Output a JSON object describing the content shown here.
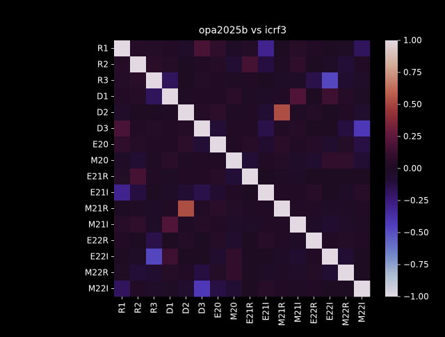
{
  "chart_data": {
    "type": "heatmap",
    "title": "opa2025b vs icrf3",
    "labels": [
      "R1",
      "R2",
      "R3",
      "D1",
      "D2",
      "D3",
      "E20",
      "M20",
      "E21R",
      "E21I",
      "M21R",
      "M21I",
      "E22R",
      "E22I",
      "M22R",
      "M22I"
    ],
    "colormap": "twilight_shifted",
    "vmin": -1.0,
    "vmax": 1.0,
    "colorbar_ticks": [
      "1.00",
      "0.75",
      "0.50",
      "0.25",
      "0.00",
      "−0.25",
      "−0.50",
      "−0.75",
      "−1.00"
    ],
    "colorbar_tick_values": [
      1.0,
      0.75,
      0.5,
      0.25,
      0.0,
      -0.25,
      -0.5,
      -0.75,
      -1.0
    ],
    "matrix": [
      [
        1.0,
        0.04,
        0.03,
        0.02,
        -0.03,
        0.18,
        0.08,
        -0.02,
        0.03,
        -0.3,
        0.0,
        0.05,
        0.02,
        0.0,
        -0.01,
        -0.18
      ],
      [
        0.04,
        1.0,
        0.06,
        0.04,
        0.0,
        0.02,
        0.04,
        -0.08,
        0.17,
        -0.12,
        0.01,
        0.08,
        0.0,
        -0.02,
        -0.1,
        0.02
      ],
      [
        0.03,
        0.06,
        1.0,
        -0.18,
        0.0,
        0.03,
        0.02,
        0.01,
        0.02,
        0.0,
        -0.02,
        -0.02,
        -0.14,
        -0.47,
        -0.06,
        -0.03
      ],
      [
        0.02,
        0.04,
        -0.18,
        1.0,
        0.01,
        0.02,
        0.02,
        0.06,
        -0.01,
        -0.02,
        0.02,
        0.2,
        0.0,
        0.14,
        0.04,
        -0.01
      ],
      [
        -0.03,
        0.0,
        0.0,
        0.01,
        1.0,
        0.04,
        0.07,
        0.01,
        0.02,
        -0.08,
        0.53,
        0.01,
        0.03,
        0.0,
        0.02,
        -0.05
      ],
      [
        0.18,
        0.02,
        0.03,
        0.02,
        0.04,
        1.0,
        -0.09,
        0.02,
        0.02,
        -0.14,
        0.02,
        0.04,
        0.0,
        0.0,
        -0.12,
        -0.42
      ],
      [
        0.08,
        0.04,
        0.02,
        0.02,
        0.07,
        -0.09,
        1.0,
        0.02,
        0.05,
        -0.07,
        0.06,
        0.02,
        0.04,
        -0.05,
        0.03,
        -0.13
      ],
      [
        -0.02,
        -0.08,
        0.01,
        0.06,
        0.01,
        0.02,
        0.02,
        1.0,
        -0.1,
        0.02,
        0.03,
        -0.03,
        -0.05,
        0.1,
        0.1,
        -0.08
      ],
      [
        0.03,
        0.17,
        0.02,
        -0.01,
        0.02,
        0.02,
        0.05,
        -0.1,
        1.0,
        0.0,
        0.01,
        -0.02,
        0.0,
        0.0,
        0.0,
        0.0
      ],
      [
        -0.3,
        -0.12,
        0.0,
        -0.02,
        -0.08,
        -0.14,
        -0.07,
        0.02,
        0.0,
        1.0,
        0.02,
        0.02,
        0.05,
        0.0,
        -0.02,
        0.05
      ],
      [
        0.0,
        0.01,
        -0.02,
        0.02,
        0.53,
        0.02,
        0.06,
        0.03,
        0.01,
        0.02,
        1.0,
        0.02,
        0.02,
        -0.02,
        0.01,
        0.02
      ],
      [
        0.05,
        0.08,
        -0.02,
        0.2,
        0.01,
        0.04,
        0.02,
        -0.03,
        -0.02,
        0.02,
        0.02,
        1.0,
        -0.02,
        -0.06,
        -0.03,
        0.01
      ],
      [
        0.02,
        0.0,
        -0.14,
        0.0,
        0.03,
        0.0,
        0.04,
        -0.05,
        0.0,
        0.05,
        0.02,
        -0.02,
        1.0,
        0.02,
        0.03,
        0.02
      ],
      [
        0.0,
        -0.02,
        -0.47,
        0.14,
        0.0,
        0.0,
        -0.05,
        0.1,
        0.0,
        0.0,
        -0.02,
        -0.06,
        0.02,
        1.0,
        -0.08,
        0.0
      ],
      [
        -0.01,
        -0.1,
        -0.06,
        0.04,
        0.02,
        -0.12,
        0.03,
        0.1,
        0.0,
        -0.02,
        0.01,
        -0.03,
        0.03,
        -0.08,
        1.0,
        0.0
      ],
      [
        -0.18,
        0.02,
        -0.03,
        -0.01,
        -0.05,
        -0.42,
        -0.13,
        -0.08,
        0.0,
        0.05,
        0.02,
        0.01,
        0.02,
        0.0,
        0.0,
        1.0
      ]
    ]
  }
}
